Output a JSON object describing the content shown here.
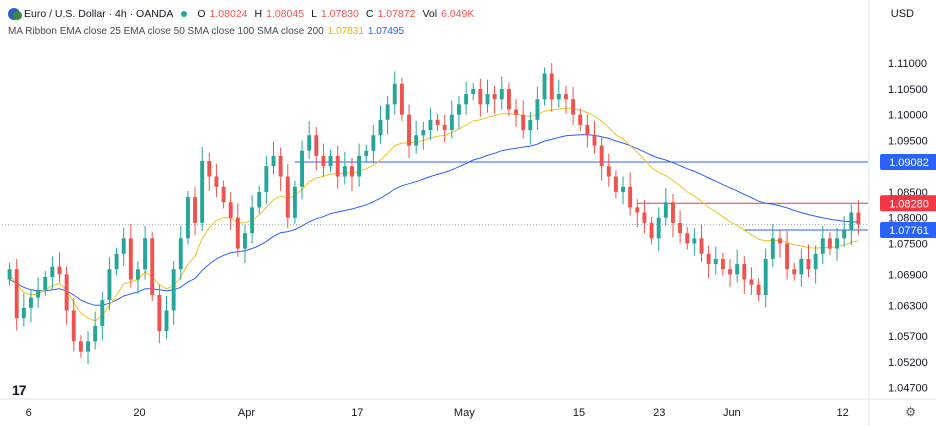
{
  "header": {
    "symbol": "Euro / U.S. Dollar · 4h · OANDA",
    "open_label": "O",
    "open": "1.08024",
    "high_label": "H",
    "high": "1.08045",
    "low_label": "L",
    "low": "1.07830",
    "close_label": "C",
    "close": "1.07872",
    "vol_label": "Vol",
    "vol": "6.049K",
    "indicator": "MA Ribbon EMA close 25 EMA close 50 SMA close 100 SMA close 200",
    "ma1_value": "1.07831",
    "ma2_value": "1.07495"
  },
  "currency": "USD",
  "logo_text": "17",
  "colors": {
    "up": "#26a69a",
    "down": "#ef5350",
    "ema25": "#f0c419",
    "ema50": "#2962ff",
    "blue_line": "#2962ff",
    "red_line": "#f23645"
  },
  "chart_data": {
    "type": "candlestick",
    "symbol": "EURUSD",
    "timeframe": "4h",
    "ylim": [
      1.045,
      1.1145
    ],
    "y_ticks": [
      "1.11000",
      "1.10500",
      "1.10000",
      "1.09500",
      "1.08500",
      "1.08000",
      "1.07500",
      "1.06900",
      "1.06300",
      "1.05700",
      "1.05200",
      "1.04700"
    ],
    "x_ticks": [
      "6",
      "20",
      "Apr",
      "17",
      "May",
      "15",
      "23",
      "Jun",
      "12"
    ],
    "price_labels": [
      {
        "value": "1.09082",
        "color": "#2962ff",
        "kind": "horizontal-line"
      },
      {
        "value": "1.08280",
        "color": "#f23645",
        "kind": "horizontal-line"
      },
      {
        "value": "1.07761",
        "color": "#2962ff",
        "kind": "current-price"
      }
    ],
    "series_close": [
      1.07,
      1.0605,
      1.0625,
      1.0645,
      1.066,
      1.0685,
      1.0705,
      1.069,
      1.062,
      1.056,
      1.054,
      1.056,
      1.059,
      1.064,
      1.07,
      1.073,
      1.076,
      1.068,
      1.07,
      1.076,
      1.065,
      1.058,
      1.062,
      1.07,
      1.076,
      1.084,
      1.079,
      1.091,
      1.088,
      1.086,
      1.083,
      1.08,
      1.074,
      1.077,
      1.082,
      1.085,
      1.09,
      1.092,
      1.088,
      1.08,
      1.086,
      1.093,
      1.096,
      1.092,
      1.09,
      1.092,
      1.088,
      1.09,
      1.088,
      1.092,
      1.093,
      1.096,
      1.099,
      1.102,
      1.106,
      1.1,
      1.094,
      1.096,
      1.097,
      1.099,
      1.098,
      1.097,
      1.1,
      1.102,
      1.104,
      1.105,
      1.102,
      1.104,
      1.103,
      1.105,
      1.101,
      1.1,
      1.097,
      1.099,
      1.103,
      1.108,
      1.103,
      1.104,
      1.103,
      1.1,
      1.098,
      1.096,
      1.094,
      1.09,
      1.088,
      1.085,
      1.086,
      1.082,
      1.081,
      1.079,
      1.076,
      1.08,
      1.083,
      1.079,
      1.077,
      1.075,
      1.076,
      1.073,
      1.071,
      1.072,
      1.07,
      1.069,
      1.071,
      1.068,
      1.067,
      1.065,
      1.072,
      1.076,
      1.075,
      1.07,
      1.069,
      1.072,
      1.07,
      1.073,
      1.076,
      1.074,
      1.076,
      1.0775,
      1.081,
      1.0787
    ],
    "series_ema25": [
      1.069,
      1.067,
      1.0655,
      1.065,
      1.0652,
      1.066,
      1.0668,
      1.0672,
      1.066,
      1.0635,
      1.0615,
      1.0605,
      1.06,
      1.061,
      1.063,
      1.065,
      1.0672,
      1.0675,
      1.068,
      1.0695,
      1.0685,
      1.067,
      1.0662,
      1.0668,
      1.0685,
      1.071,
      1.0725,
      1.076,
      1.078,
      1.0795,
      1.08,
      1.08,
      1.079,
      1.079,
      1.0795,
      1.0805,
      1.082,
      1.0835,
      1.0842,
      1.0838,
      1.0842,
      1.0855,
      1.087,
      1.0877,
      1.088,
      1.0885,
      1.0885,
      1.0887,
      1.0887,
      1.089,
      1.0895,
      1.0902,
      1.0912,
      1.0925,
      1.094,
      1.0945,
      1.0945,
      1.0947,
      1.095,
      1.0955,
      1.0958,
      1.096,
      1.0965,
      1.0972,
      1.098,
      1.0988,
      1.099,
      1.0995,
      1.0998,
      1.1002,
      1.1002,
      1.1001,
      1.0998,
      1.0997,
      1.1,
      1.1007,
      1.1009,
      1.1011,
      1.1013,
      1.1012,
      1.1009,
      1.1004,
      1.0997,
      1.0987,
      1.0975,
      1.0961,
      1.0953,
      1.094,
      1.0927,
      1.0913,
      1.0897,
      1.0888,
      1.0882,
      1.0872,
      1.0862,
      1.085,
      1.0842,
      1.0832,
      1.082,
      1.0812,
      1.0802,
      1.0792,
      1.0785,
      1.0776,
      1.0767,
      1.0758,
      1.0755,
      1.0756,
      1.0756,
      1.0752,
      1.0747,
      1.0745,
      1.0742,
      1.0741,
      1.0742,
      1.0742,
      1.0744,
      1.0747,
      1.0752,
      1.0755
    ],
    "series_ema50": [
      1.068,
      1.0672,
      1.0665,
      1.066,
      1.0658,
      1.0658,
      1.066,
      1.0662,
      1.0658,
      1.065,
      1.064,
      1.0634,
      1.063,
      1.063,
      1.0634,
      1.064,
      1.0648,
      1.0652,
      1.0656,
      1.0662,
      1.0662,
      1.066,
      1.0658,
      1.066,
      1.0665,
      1.0675,
      1.0682,
      1.0698,
      1.071,
      1.072,
      1.0727,
      1.0732,
      1.0734,
      1.0736,
      1.074,
      1.0746,
      1.0754,
      1.0764,
      1.0771,
      1.0773,
      1.0777,
      1.0784,
      1.0792,
      1.0798,
      1.0802,
      1.0808,
      1.0811,
      1.0814,
      1.0817,
      1.0821,
      1.0825,
      1.0831,
      1.0838,
      1.0846,
      1.0856,
      1.0862,
      1.0866,
      1.087,
      1.0875,
      1.088,
      1.0884,
      1.0888,
      1.0893,
      1.0899,
      1.0905,
      1.0912,
      1.0916,
      1.0921,
      1.0925,
      1.093,
      1.0933,
      1.0935,
      1.0937,
      1.0939,
      1.0943,
      1.0949,
      1.0952,
      1.0956,
      1.0959,
      1.096,
      1.0961,
      1.0961,
      1.096,
      1.0957,
      1.0954,
      1.0949,
      1.0945,
      1.094,
      1.0934,
      1.0928,
      1.0921,
      1.0916,
      1.0912,
      1.0907,
      1.0901,
      1.0895,
      1.089,
      1.0884,
      1.0877,
      1.0871,
      1.0864,
      1.0858,
      1.0852,
      1.0845,
      1.0839,
      1.0832,
      1.0828,
      1.0826,
      1.0823,
      1.0819,
      1.0814,
      1.081,
      1.0806,
      1.0803,
      1.08,
      1.0797,
      1.0795,
      1.0793,
      1.0792,
      1.0791
    ]
  }
}
